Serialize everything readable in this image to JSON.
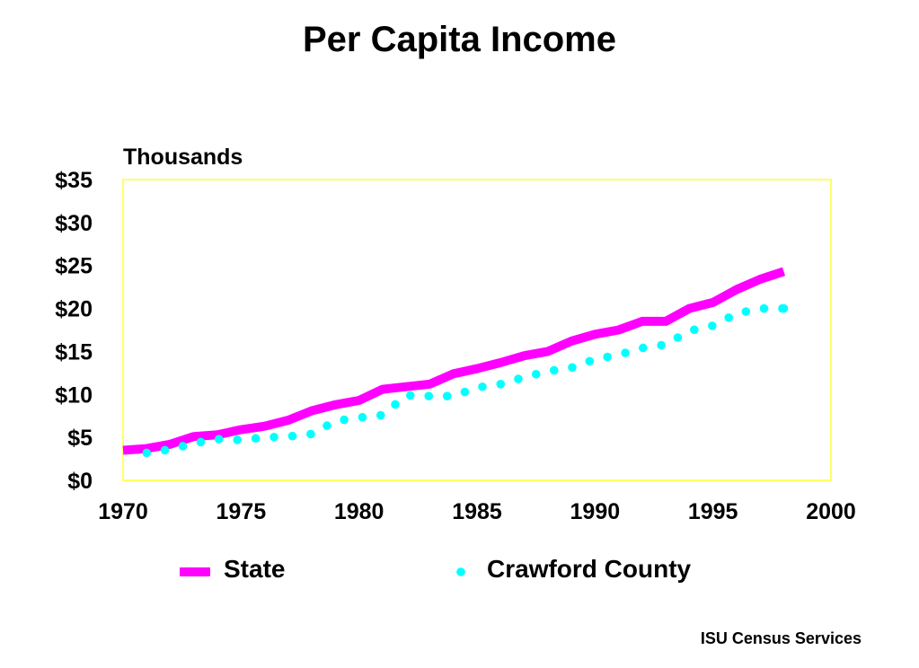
{
  "chart_data": {
    "type": "line",
    "title": "Per Capita Income",
    "ylabel": "Thousands",
    "xlabel": "",
    "xlim": [
      1970,
      2000
    ],
    "ylim": [
      0,
      35
    ],
    "x_ticks": [
      1970,
      1975,
      1980,
      1985,
      1990,
      1995,
      2000
    ],
    "x_tick_labels": [
      "1970",
      "1975",
      "1980",
      "1985",
      "1990",
      "1995",
      "2000"
    ],
    "y_ticks": [
      0,
      5,
      10,
      15,
      20,
      25,
      30,
      35
    ],
    "y_tick_labels": [
      "$0",
      "$5",
      "$10",
      "$15",
      "$20",
      "$25",
      "$30",
      "$35"
    ],
    "grid": false,
    "legend_position": "bottom",
    "series": [
      {
        "name": "State",
        "style": "solid",
        "color": "#ff00ff",
        "x": [
          1970,
          1971,
          1972,
          1973,
          1974,
          1975,
          1976,
          1977,
          1978,
          1979,
          1980,
          1981,
          1982,
          1983,
          1984,
          1985,
          1986,
          1987,
          1988,
          1989,
          1990,
          1991,
          1992,
          1993,
          1994,
          1995,
          1996,
          1997,
          1998
        ],
        "values": [
          3.5,
          3.7,
          4.2,
          5.1,
          5.3,
          5.9,
          6.3,
          7.0,
          8.1,
          8.8,
          9.3,
          10.6,
          10.9,
          11.2,
          12.4,
          13.0,
          13.7,
          14.5,
          15.0,
          16.2,
          17.0,
          17.5,
          18.5,
          18.5,
          20.0,
          20.7,
          22.2,
          23.4,
          24.3
        ]
      },
      {
        "name": "Crawford County",
        "style": "dotted",
        "color": "#00ffff",
        "x": [
          1971,
          1972,
          1973,
          1974,
          1975,
          1976,
          1977,
          1978,
          1979,
          1980,
          1981,
          1982,
          1983,
          1984,
          1985,
          1986,
          1987,
          1988,
          1989,
          1990,
          1991,
          1992,
          1993,
          1994,
          1995,
          1996,
          1997,
          1998
        ],
        "values": [
          3.2,
          3.6,
          4.3,
          4.8,
          4.7,
          5.0,
          5.1,
          5.4,
          6.9,
          7.3,
          7.6,
          9.9,
          9.8,
          9.8,
          10.8,
          11.2,
          12.0,
          12.7,
          13.1,
          14.1,
          14.6,
          15.4,
          15.8,
          17.4,
          18.0,
          19.4,
          20.0,
          20.0
        ]
      }
    ]
  },
  "plot_style": {
    "border_color": "#ffff66",
    "background": "#ffffff"
  },
  "footer": {
    "credit": "ISU Census Services"
  }
}
